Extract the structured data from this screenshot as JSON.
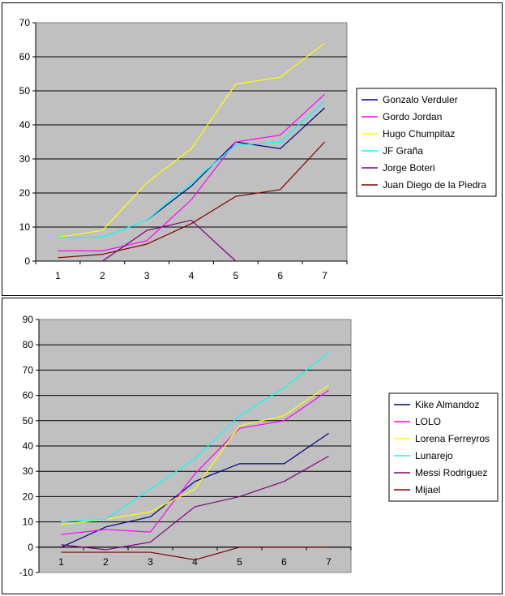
{
  "chart_data": [
    {
      "type": "line",
      "x": [
        1,
        2,
        3,
        4,
        5,
        6,
        7
      ],
      "ylim": [
        0,
        70
      ],
      "ytick_step": 10,
      "grid": true,
      "plot_background": "#c0c0c0",
      "legend_position": "right",
      "series": [
        {
          "name": "Gonzalo Verduler",
          "color": "#000080",
          "values": [
            null,
            null,
            12,
            22,
            35,
            33,
            45
          ]
        },
        {
          "name": "Gordo Jordan",
          "color": "#ff00ff",
          "values": [
            3,
            3,
            6,
            18,
            35,
            37,
            49
          ]
        },
        {
          "name": "Hugo Chumpitaz",
          "color": "#ffff00",
          "values": [
            7,
            9,
            23,
            33,
            52,
            54,
            64
          ]
        },
        {
          "name": "JF Graña",
          "color": "#00ffff",
          "values": [
            7,
            7,
            12,
            23,
            34,
            35,
            47
          ]
        },
        {
          "name": "Jorge Boteri",
          "color": "#800080",
          "values": [
            null,
            0,
            9,
            12,
            0,
            null,
            null
          ]
        },
        {
          "name": "Juan Diego de la Piedra",
          "color": "#800000",
          "values": [
            1,
            2,
            5,
            11,
            19,
            21,
            35
          ]
        }
      ]
    },
    {
      "type": "line",
      "x": [
        1,
        2,
        3,
        4,
        5,
        6,
        7
      ],
      "ylim": [
        -10,
        90
      ],
      "ytick_step": 10,
      "grid": true,
      "plot_background": "#c0c0c0",
      "legend_position": "right",
      "series": [
        {
          "name": "Kike Almandoz",
          "color": "#000080",
          "values": [
            0,
            8,
            12,
            26,
            33,
            33,
            45
          ]
        },
        {
          "name": "LOLO",
          "color": "#ff00ff",
          "values": [
            5,
            7,
            6,
            29,
            47,
            50,
            62
          ]
        },
        {
          "name": "Lorena Ferreyros",
          "color": "#ffff00",
          "values": [
            9,
            11,
            14,
            23,
            48,
            52,
            64
          ]
        },
        {
          "name": "Lunarejo",
          "color": "#00ffff",
          "values": [
            10,
            11,
            23,
            35,
            52,
            63,
            77
          ]
        },
        {
          "name": "Messi Rodriguez",
          "color": "#800080",
          "values": [
            1,
            -1,
            2,
            16,
            20,
            26,
            36
          ]
        },
        {
          "name": "Mijael",
          "color": "#800000",
          "values": [
            -2,
            -2,
            -2,
            -5,
            0,
            0,
            0
          ]
        }
      ]
    }
  ]
}
